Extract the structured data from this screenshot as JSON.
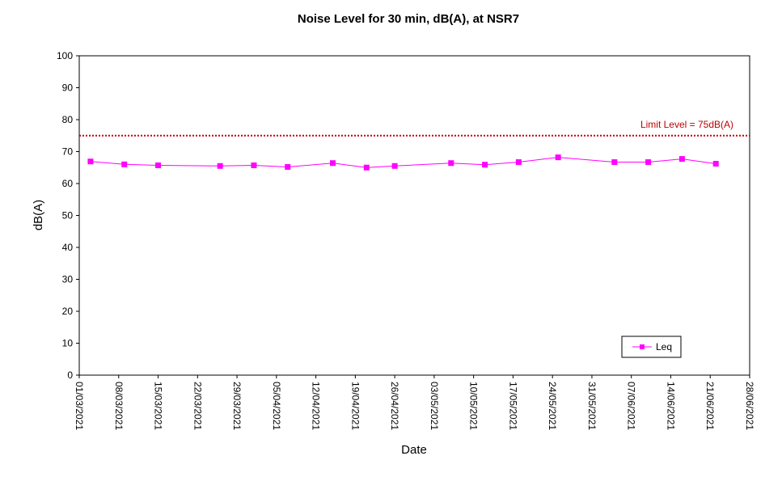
{
  "chart_data": {
    "type": "line",
    "title": "Noise Level for 30 min, dB(A), at NSR7",
    "xlabel": "Date",
    "ylabel": "dB(A)",
    "ylim": [
      0,
      100
    ],
    "yticks": [
      0,
      10,
      20,
      30,
      40,
      50,
      60,
      70,
      80,
      90,
      100
    ],
    "xlim": [
      "2021-03-01",
      "2021-06-28"
    ],
    "xtick_labels": [
      "01/03/2021",
      "08/03/2021",
      "15/03/2021",
      "22/03/2021",
      "29/03/2021",
      "05/04/2021",
      "12/04/2021",
      "19/04/2021",
      "26/04/2021",
      "03/05/2021",
      "10/05/2021",
      "17/05/2021",
      "24/05/2021",
      "31/05/2021",
      "07/06/2021",
      "14/06/2021",
      "21/06/2021",
      "28/06/2021"
    ],
    "grid": false,
    "legend_position": "bottom-right",
    "limit": {
      "label": "Limit Level  = 75dB(A)",
      "value": 75,
      "color": "#c00000"
    },
    "series": [
      {
        "name": "Leq",
        "color": "#ff00ff",
        "marker": "square",
        "x": [
          "2021-03-03",
          "2021-03-09",
          "2021-03-15",
          "2021-03-26",
          "2021-04-01",
          "2021-04-07",
          "2021-04-15",
          "2021-04-21",
          "2021-04-26",
          "2021-05-06",
          "2021-05-12",
          "2021-05-18",
          "2021-05-25",
          "2021-06-04",
          "2021-06-10",
          "2021-06-16",
          "2021-06-22"
        ],
        "y": [
          66.9,
          66.0,
          65.7,
          65.5,
          65.7,
          65.2,
          66.4,
          65.0,
          65.5,
          66.4,
          65.9,
          66.7,
          68.2,
          66.7,
          66.7,
          67.7,
          66.2
        ]
      }
    ]
  }
}
